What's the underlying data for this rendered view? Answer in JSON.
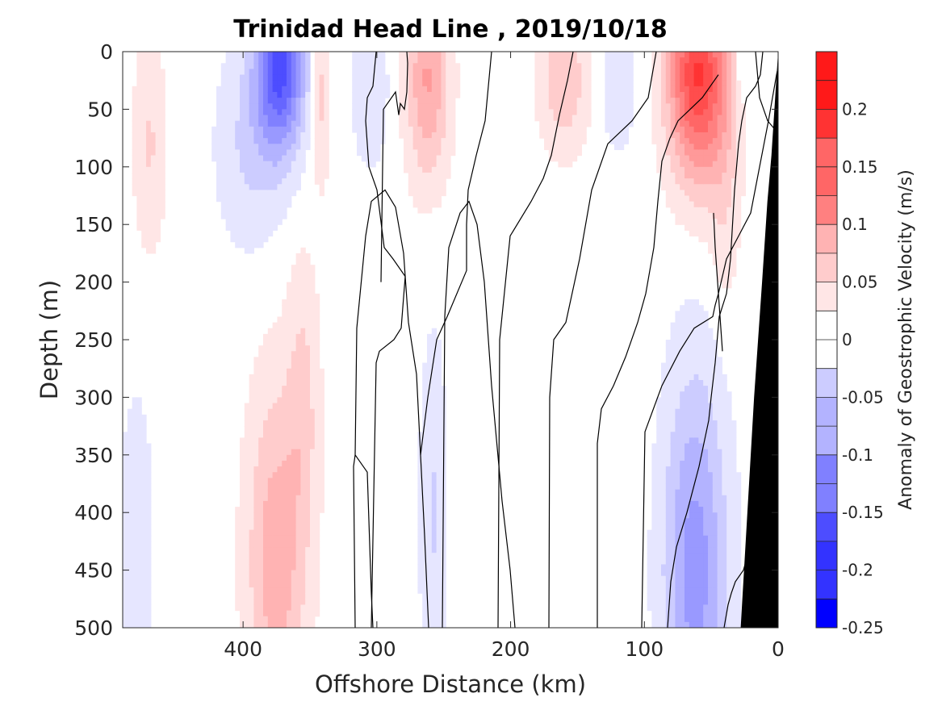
{
  "chart_data": {
    "type": "heatmap",
    "title": "Trinidad Head Line , 2019/10/18",
    "xlabel": "Offshore Distance (km)",
    "ylabel": "Depth (m)",
    "colorbar_label": "Anomaly of Geostrophic Velocity (m/s)",
    "xlim": [
      490,
      0
    ],
    "ylim": [
      0,
      500
    ],
    "x_ticks": [
      "400",
      "300",
      "200",
      "100",
      "0"
    ],
    "y_ticks": [
      "0",
      "50",
      "100",
      "150",
      "200",
      "250",
      "300",
      "350",
      "400",
      "450",
      "500"
    ],
    "colorbar_ticks": [
      "0.2",
      "0.15",
      "0.1",
      "0.05",
      "0",
      "-0.05",
      "-0.1",
      "-0.15",
      "-0.2",
      "-0.25"
    ],
    "colorbar_range": [
      -0.25,
      0.25
    ],
    "contour_step": 0.025,
    "positive_color": "#ff0000",
    "negative_color": "#0000ff",
    "zero_color": "#ffffff",
    "bathymetry_color": "#000000",
    "features": [
      {
        "x": 470,
        "depth": 80,
        "value": 0.04,
        "width_km": 12,
        "depth_extent": 90
      },
      {
        "x": 372,
        "depth": 10,
        "value": -0.17,
        "width_km": 18,
        "depth_extent": 75
      },
      {
        "x": 395,
        "depth": 80,
        "value": -0.04,
        "width_km": 25,
        "depth_extent": 90
      },
      {
        "x": 342,
        "depth": 35,
        "value": 0.05,
        "width_km": 7,
        "depth_extent": 75
      },
      {
        "x": 305,
        "depth": 30,
        "value": -0.035,
        "width_km": 14,
        "depth_extent": 70
      },
      {
        "x": 262,
        "depth": 25,
        "value": 0.09,
        "width_km": 16,
        "depth_extent": 85
      },
      {
        "x": 160,
        "depth": 25,
        "value": 0.06,
        "width_km": 18,
        "depth_extent": 60
      },
      {
        "x": 120,
        "depth": 30,
        "value": -0.03,
        "width_km": 14,
        "depth_extent": 60
      },
      {
        "x": 60,
        "depth": 20,
        "value": 0.19,
        "width_km": 22,
        "depth_extent": 90
      },
      {
        "x": 40,
        "depth": 120,
        "value": 0.03,
        "width_km": 12,
        "depth_extent": 110
      },
      {
        "x": 28,
        "depth": 15,
        "value": -0.03,
        "width_km": 5,
        "depth_extent": 30
      },
      {
        "x": 375,
        "depth": 440,
        "value": 0.08,
        "width_km": 22,
        "depth_extent": 150
      },
      {
        "x": 355,
        "depth": 300,
        "value": 0.04,
        "width_km": 12,
        "depth_extent": 120
      },
      {
        "x": 258,
        "depth": 400,
        "value": -0.04,
        "width_km": 10,
        "depth_extent": 150
      },
      {
        "x": 480,
        "depth": 420,
        "value": -0.035,
        "width_km": 12,
        "depth_extent": 120
      },
      {
        "x": 62,
        "depth": 450,
        "value": -0.1,
        "width_km": 24,
        "depth_extent": 170
      }
    ],
    "zero_contours": [
      [
        [
          460,
          500
        ],
        [
          466,
          270
        ],
        [
          470,
          260
        ],
        [
          488,
          250
        ],
        [
          497,
          240
        ],
        [
          502,
          195
        ],
        [
          487,
          180
        ],
        [
          476,
          170
        ],
        [
          467,
          120
        ],
        [
          457,
          100
        ],
        [
          453,
          60
        ],
        [
          455,
          40
        ],
        [
          462,
          30
        ],
        [
          466,
          0
        ]
      ],
      [
        [
          472,
          200
        ],
        [
          475,
          50
        ],
        [
          490,
          35
        ],
        [
          494,
          55
        ],
        [
          496,
          45
        ],
        [
          501,
          50
        ],
        [
          504,
          35
        ],
        [
          505,
          10
        ],
        [
          504,
          0
        ]
      ],
      [
        [
          440,
          500
        ],
        [
          438,
          360
        ],
        [
          440,
          350
        ],
        [
          455,
          365
        ],
        [
          460,
          470
        ],
        [
          462,
          500
        ]
      ],
      [
        [
          440,
          350
        ],
        [
          442,
          240
        ],
        [
          453,
          160
        ],
        [
          460,
          130
        ],
        [
          477,
          120
        ],
        [
          490,
          135
        ],
        [
          500,
          175
        ],
        [
          506,
          235
        ],
        [
          516,
          280
        ],
        [
          521,
          350
        ],
        [
          526,
          420
        ],
        [
          531,
          500
        ]
      ],
      [
        [
          521,
          350
        ],
        [
          530,
          300
        ],
        [
          541,
          250
        ],
        [
          554,
          230
        ],
        [
          578,
          190
        ],
        [
          578,
          150
        ],
        [
          580,
          120
        ],
        [
          590,
          90
        ],
        [
          601,
          60
        ],
        [
          609,
          0
        ]
      ],
      [
        [
          548,
          500
        ],
        [
          551,
          230
        ],
        [
          556,
          170
        ],
        [
          570,
          140
        ],
        [
          581,
          130
        ],
        [
          591,
          150
        ],
        [
          600,
          200
        ],
        [
          609,
          290
        ],
        [
          622,
          390
        ],
        [
          632,
          450
        ],
        [
          638,
          500
        ]
      ],
      [
        [
          617,
          500
        ],
        [
          619,
          250
        ],
        [
          632,
          160
        ],
        [
          658,
          130
        ],
        [
          673,
          110
        ],
        [
          683,
          90
        ],
        [
          693,
          55
        ],
        [
          703,
          25
        ],
        [
          710,
          0
        ]
      ],
      [
        [
          680,
          500
        ],
        [
          681,
          300
        ],
        [
          686,
          250
        ],
        [
          701,
          235
        ],
        [
          718,
          180
        ],
        [
          733,
          120
        ],
        [
          753,
          80
        ],
        [
          783,
          60
        ],
        [
          803,
          40
        ],
        [
          813,
          0
        ]
      ],
      [
        [
          795,
          500
        ],
        [
          799,
          330
        ],
        [
          820,
          290
        ],
        [
          842,
          260
        ],
        [
          860,
          240
        ],
        [
          883,
          230
        ],
        [
          886,
          220
        ],
        [
          890,
          210
        ],
        [
          900,
          180
        ],
        [
          915,
          160
        ],
        [
          930,
          140
        ],
        [
          941,
          100
        ],
        [
          952,
          60
        ],
        [
          962,
          20
        ],
        [
          968,
          0
        ]
      ],
      [
        [
          897,
          500
        ],
        [
          902,
          480
        ],
        [
          906,
          470
        ],
        [
          911,
          460
        ],
        [
          921,
          450
        ],
        [
          933,
          420
        ],
        [
          940,
          380
        ],
        [
          946,
          340
        ],
        [
          949,
          300
        ],
        [
          955,
          270
        ],
        [
          958,
          240
        ],
        [
          962,
          200
        ],
        [
          966,
          160
        ],
        [
          968,
          140
        ],
        [
          969,
          100
        ],
        [
          969,
          0
        ]
      ],
      [
        [
          827,
          500
        ],
        [
          831,
          460
        ],
        [
          838,
          430
        ],
        [
          851,
          400
        ],
        [
          866,
          360
        ],
        [
          878,
          320
        ],
        [
          881,
          300
        ],
        [
          886,
          270
        ],
        [
          891,
          230
        ],
        [
          900,
          210
        ],
        [
          905,
          180
        ]
      ],
      [
        [
          905,
          180
        ],
        [
          910,
          120
        ],
        [
          915,
          80
        ],
        [
          919,
          60
        ],
        [
          925,
          40
        ],
        [
          936,
          30
        ],
        [
          942,
          20
        ],
        [
          945,
          0
        ]
      ],
      [
        [
          960,
          260
        ],
        [
          964,
          320
        ],
        [
          968,
          350
        ],
        [
          975,
          370
        ],
        [
          983,
          390
        ],
        [
          992,
          410
        ],
        [
          1002,
          430
        ],
        [
          1012,
          440
        ],
        [
          1022,
          460
        ],
        [
          1032,
          480
        ],
        [
          1040,
          500
        ]
      ],
      [
        [
          740,
          500
        ],
        [
          740,
          340
        ],
        [
          745,
          310
        ],
        [
          760,
          290
        ],
        [
          775,
          265
        ],
        [
          790,
          235
        ],
        [
          800,
          210
        ],
        [
          810,
          170
        ],
        [
          815,
          130
        ],
        [
          820,
          95
        ],
        [
          830,
          75
        ],
        [
          840,
          60
        ],
        [
          855,
          50
        ],
        [
          870,
          40
        ],
        [
          880,
          30
        ],
        [
          890,
          20
        ]
      ],
      [
        [
          895,
          260
        ],
        [
          892,
          230
        ],
        [
          889,
          200
        ],
        [
          886,
          170
        ],
        [
          884,
          140
        ]
      ],
      [
        [
          936,
          0
        ],
        [
          941,
          40
        ],
        [
          951,
          60
        ],
        [
          963,
          70
        ]
      ]
    ],
    "shelf_profile": [
      [
        28,
        500
      ],
      [
        18,
        300
      ],
      [
        12,
        200
      ],
      [
        8,
        130
      ],
      [
        5,
        90
      ],
      [
        0,
        0
      ]
    ]
  }
}
